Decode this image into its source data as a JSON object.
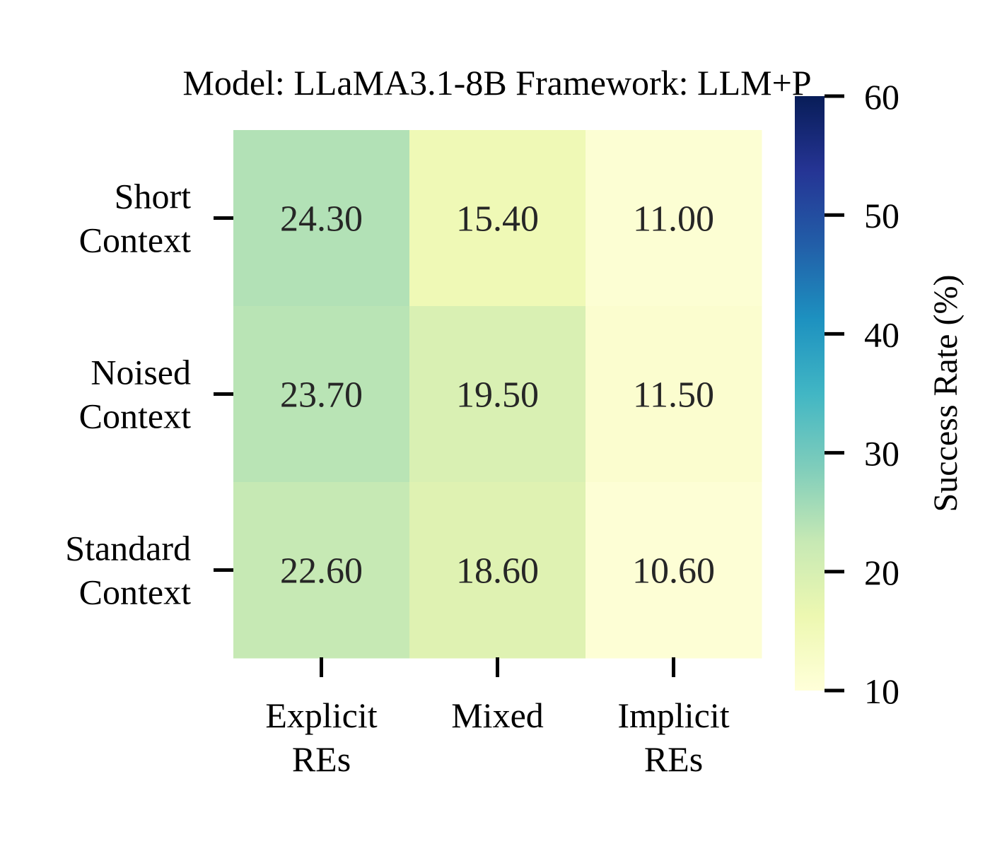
{
  "chart_data": {
    "type": "heatmap",
    "title": "Model: LLaMA3.1-8B  Framework: LLM+P",
    "rows": [
      [
        "Short",
        "Context"
      ],
      [
        "Noised",
        "Context"
      ],
      [
        "Standard",
        "Context"
      ]
    ],
    "columns": [
      [
        "Explicit",
        "REs"
      ],
      [
        "Mixed"
      ],
      [
        "Implicit",
        "REs"
      ]
    ],
    "values": [
      [
        24.3,
        15.4,
        11.0
      ],
      [
        23.7,
        19.5,
        11.5
      ],
      [
        22.6,
        18.6,
        10.6
      ]
    ],
    "value_format_decimals": 2,
    "colorbar": {
      "label": "Success Rate (%)",
      "range": [
        10,
        60
      ],
      "ticks": [
        10,
        20,
        30,
        40,
        50,
        60
      ],
      "colormap": "YlGnBu",
      "stops": [
        "#ffffd9",
        "#edf8b1",
        "#c7e9b4",
        "#7fcdbb",
        "#41b6c4",
        "#1d91c0",
        "#225ea8",
        "#253494",
        "#081d58"
      ]
    }
  }
}
